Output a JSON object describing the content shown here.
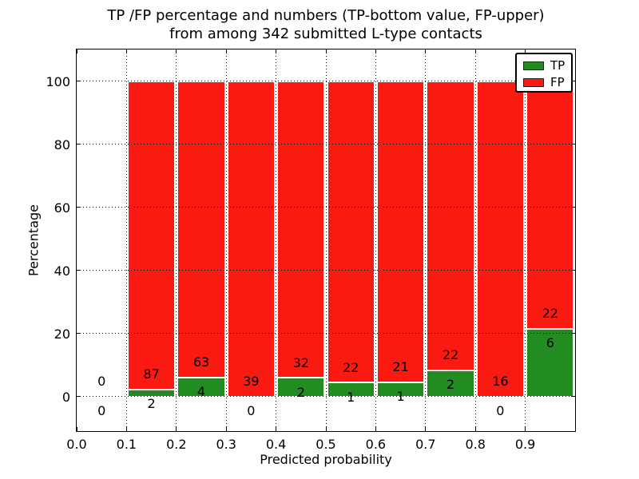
{
  "title": {
    "line1": "TP /FP percentage and numbers (TP-bottom value, FP-upper)",
    "line2": "from among 342 submitted L-type contacts"
  },
  "colors": {
    "tp": "#228b22",
    "fp": "#fb1a12",
    "grid": "#000000",
    "text": "#000000",
    "background": "#ffffff"
  },
  "chart_data": {
    "type": "bar",
    "stacked": true,
    "normalized": "each bar shows TP and FP as percent of bin total; counts shown as labels",
    "title": "TP /FP percentage and numbers (TP-bottom value, FP-upper)\nfrom among 342 submitted L-type contacts",
    "xlabel": "Predicted probability",
    "ylabel": "Percentage",
    "xlim": [
      0.0,
      1.0
    ],
    "ylim": [
      -11,
      110
    ],
    "grid": true,
    "x_tick_values": [
      0.0,
      0.1,
      0.2,
      0.3,
      0.4,
      0.5,
      0.6,
      0.7,
      0.8,
      0.9
    ],
    "x_tick_labels": [
      "0.0",
      "0.1",
      "0.2",
      "0.3",
      "0.4",
      "0.5",
      "0.6",
      "0.7",
      "0.8",
      "0.9"
    ],
    "y_tick_values": [
      0,
      20,
      40,
      60,
      80,
      100
    ],
    "y_tick_labels": [
      "0",
      "20",
      "40",
      "60",
      "80",
      "100"
    ],
    "legend": {
      "position": "upper right",
      "entries": [
        {
          "label": "TP",
          "color": "#228b22"
        },
        {
          "label": "FP",
          "color": "#fb1a12"
        }
      ]
    },
    "total_contacts": 342,
    "bins": [
      {
        "range": [
          0.0,
          0.1
        ],
        "tp": 0,
        "fp": 0
      },
      {
        "range": [
          0.1,
          0.2
        ],
        "tp": 2,
        "fp": 87
      },
      {
        "range": [
          0.2,
          0.3
        ],
        "tp": 4,
        "fp": 63
      },
      {
        "range": [
          0.3,
          0.4
        ],
        "tp": 0,
        "fp": 39
      },
      {
        "range": [
          0.4,
          0.5
        ],
        "tp": 2,
        "fp": 32
      },
      {
        "range": [
          0.5,
          0.6
        ],
        "tp": 1,
        "fp": 22
      },
      {
        "range": [
          0.6,
          0.7
        ],
        "tp": 1,
        "fp": 21
      },
      {
        "range": [
          0.7,
          0.8
        ],
        "tp": 2,
        "fp": 22
      },
      {
        "range": [
          0.8,
          0.9
        ],
        "tp": 0,
        "fp": 16
      },
      {
        "range": [
          0.9,
          1.0
        ],
        "tp": 6,
        "fp": 22
      }
    ]
  }
}
